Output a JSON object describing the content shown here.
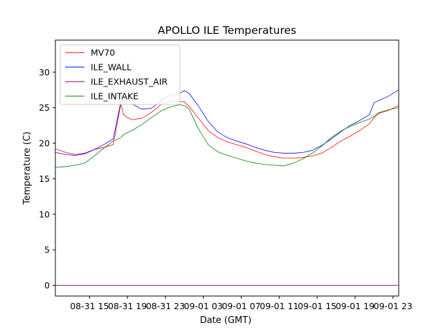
{
  "chart_data": {
    "type": "line",
    "title": "APOLLO ILE Temperatures",
    "xlabel": "Date (GMT)",
    "ylabel": "Temperature (C)",
    "x_unit": "hours since 08-31 00:00 GMT",
    "xlim": [
      11.4,
      47.6
    ],
    "ylim": [
      -1.5,
      34.5
    ],
    "grid": false,
    "legend_position": "top-left",
    "x_ticks": [
      {
        "value": 15,
        "label": "08-31 15"
      },
      {
        "value": 19,
        "label": "08-31 19"
      },
      {
        "value": 23,
        "label": "08-31 23"
      },
      {
        "value": 27,
        "label": "09-01 03"
      },
      {
        "value": 31,
        "label": "09-01 07"
      },
      {
        "value": 35,
        "label": "09-01 11"
      },
      {
        "value": 39,
        "label": "09-01 15"
      },
      {
        "value": 43,
        "label": "09-01 19"
      },
      {
        "value": 47,
        "label": "09-01 23"
      }
    ],
    "y_ticks": [
      {
        "value": 0,
        "label": "0"
      },
      {
        "value": 5,
        "label": "5"
      },
      {
        "value": 10,
        "label": "10"
      },
      {
        "value": 15,
        "label": "15"
      },
      {
        "value": 20,
        "label": "20"
      },
      {
        "value": 25,
        "label": "25"
      },
      {
        "value": 30,
        "label": "30"
      }
    ],
    "x": [
      11.4,
      12.5,
      13.5,
      14.5,
      15.5,
      16.5,
      17.5,
      18.3,
      18.6,
      19.0,
      19.5,
      20.5,
      21.5,
      22.5,
      23.5,
      24.5,
      25.0,
      25.5,
      26.5,
      27.5,
      28.5,
      29.5,
      30.5,
      31.5,
      32.5,
      33.5,
      34.5,
      35.5,
      36.5,
      37.5,
      38.5,
      39.5,
      40.5,
      41.5,
      42.5,
      43.5,
      44.5,
      45.0,
      45.5,
      46.5,
      47.6
    ],
    "series": [
      {
        "name": "MV70",
        "color": "#ff0000",
        "values": [
          19.2,
          18.7,
          18.4,
          18.6,
          19.1,
          19.4,
          19.8,
          25.5,
          24.0,
          23.6,
          23.3,
          23.5,
          24.3,
          25.4,
          25.9,
          25.9,
          25.8,
          25.2,
          23.5,
          21.8,
          20.8,
          20.2,
          19.8,
          19.4,
          18.9,
          18.4,
          18.1,
          17.9,
          17.9,
          18.0,
          18.2,
          18.6,
          19.4,
          20.3,
          21.0,
          21.8,
          22.7,
          23.6,
          24.2,
          24.6,
          25.3
        ]
      },
      {
        "name": "ILE_WALL",
        "color": "#0000ff",
        "values": [
          18.7,
          18.4,
          18.3,
          18.5,
          19.1,
          19.8,
          20.6,
          25.8,
          25.8,
          26.2,
          25.5,
          24.8,
          24.9,
          25.9,
          26.8,
          27.0,
          27.4,
          27.0,
          25.2,
          23.1,
          21.6,
          20.8,
          20.3,
          19.9,
          19.4,
          19.0,
          18.7,
          18.6,
          18.6,
          18.7,
          19.0,
          19.7,
          20.6,
          21.6,
          22.5,
          23.2,
          24.0,
          25.7,
          26.0,
          26.6,
          27.5
        ]
      },
      {
        "name": "ILE_EXHAUST_AIR",
        "color": "#800080",
        "values": [
          0,
          0,
          0,
          0,
          0,
          0,
          0,
          0,
          0,
          0,
          0,
          0,
          0,
          0,
          0,
          0,
          0,
          0,
          0,
          0,
          0,
          0,
          0,
          0,
          0,
          0,
          0,
          0,
          0,
          0,
          0,
          0,
          0,
          0,
          0,
          0,
          0,
          0,
          0,
          0,
          0
        ]
      },
      {
        "name": "ILE_INTAKE",
        "color": "#008000",
        "values": [
          16.6,
          16.7,
          16.9,
          17.2,
          18.2,
          19.3,
          20.3,
          20.8,
          21.2,
          21.5,
          21.8,
          22.6,
          23.6,
          24.5,
          25.1,
          25.4,
          25.3,
          24.8,
          22.0,
          19.8,
          18.8,
          18.3,
          17.9,
          17.5,
          17.2,
          17.0,
          16.9,
          16.8,
          17.2,
          17.8,
          18.6,
          19.6,
          20.8,
          21.7,
          22.4,
          22.9,
          23.4,
          23.8,
          24.3,
          24.7,
          25.0
        ]
      }
    ]
  }
}
